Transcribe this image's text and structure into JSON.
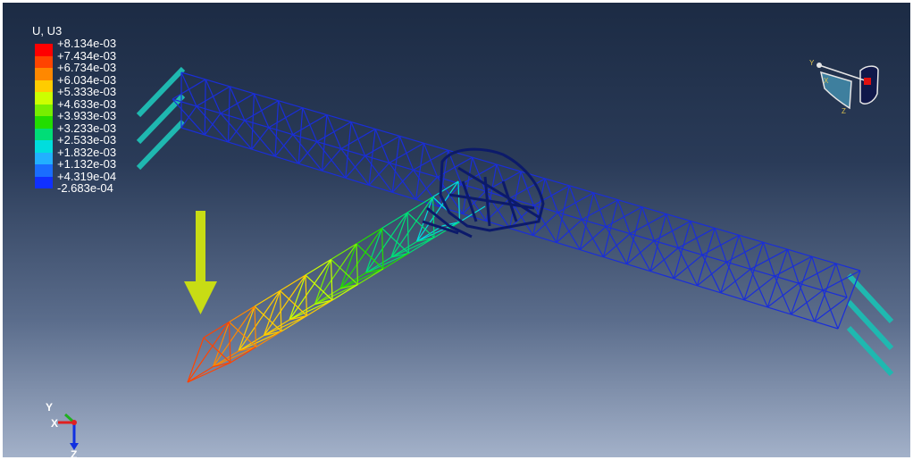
{
  "legend": {
    "title": "U, U3",
    "labels": [
      "+8.134e-03",
      "+7.434e-03",
      "+6.734e-03",
      "+6.034e-03",
      "+5.333e-03",
      "+4.633e-03",
      "+3.933e-03",
      "+3.233e-03",
      "+2.533e-03",
      "+1.832e-03",
      "+1.132e-03",
      "+4.319e-04",
      "-2.683e-04"
    ],
    "colors": [
      "#ff0000",
      "#ff4400",
      "#ff8800",
      "#ffcc00",
      "#ccff00",
      "#77ee00",
      "#22dd00",
      "#00dd77",
      "#00dddd",
      "#22b0ff",
      "#1a6dff",
      "#1030ff"
    ]
  },
  "view_cube": {
    "axes": {
      "y": "Y",
      "x": "X",
      "z": "Z"
    }
  },
  "triad": {
    "y": "Y",
    "x": "X",
    "z": "Z"
  },
  "colors": {
    "arrow": "#c8dc14",
    "boundary_condition": "#1fb8b0",
    "undeformed_truss": "#1a2ed8",
    "hub": "#0c1a6a"
  }
}
